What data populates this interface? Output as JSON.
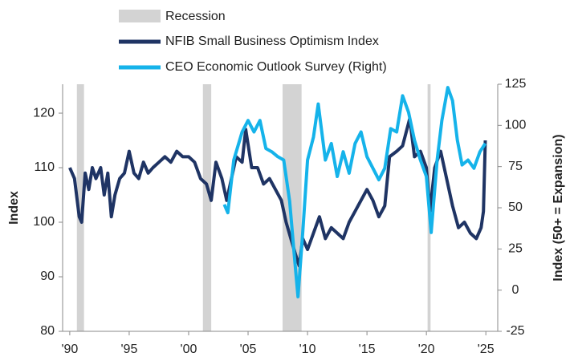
{
  "chart_data": {
    "type": "line",
    "recession_label": "Recession",
    "recession_color": "#d3d3d3",
    "recessions": [
      [
        1990.6,
        1991.2
      ],
      [
        2001.2,
        2001.9
      ],
      [
        2007.9,
        2009.5
      ],
      [
        2020.1,
        2020.35
      ]
    ],
    "ylabel": "Index",
    "y2label": "Index (50+ = Expansion)",
    "xlim": [
      1989.4,
      2026
    ],
    "xticks": [
      {
        "value": 1990,
        "label": "'90"
      },
      {
        "value": 1995,
        "label": "'95"
      },
      {
        "value": 2000,
        "label": "'00"
      },
      {
        "value": 2005,
        "label": "'05"
      },
      {
        "value": 2010,
        "label": "'10"
      },
      {
        "value": 2015,
        "label": "'15"
      },
      {
        "value": 2020,
        "label": "'20"
      },
      {
        "value": 2025,
        "label": "'25"
      }
    ],
    "ylim": [
      80,
      125.3
    ],
    "yticks": [
      80,
      90,
      100,
      110,
      120
    ],
    "y2lim": [
      -25,
      125
    ],
    "y2ticks": [
      -25,
      0,
      25,
      50,
      75,
      100,
      125
    ],
    "series": [
      {
        "name": "NFIB Small Business Optimism Index",
        "color": "#1f3464",
        "x": [
          1990.0,
          1990.4,
          1990.8,
          1991.0,
          1991.3,
          1991.6,
          1991.9,
          1992.2,
          1992.6,
          1992.9,
          1993.2,
          1993.5,
          1993.8,
          1994.2,
          1994.6,
          1995.0,
          1995.4,
          1995.8,
          1996.2,
          1996.6,
          1997.0,
          1997.5,
          1998.0,
          1998.5,
          1999.0,
          1999.5,
          2000.0,
          2000.5,
          2001.0,
          2001.5,
          2001.9,
          2002.3,
          2002.8,
          2003.2,
          2003.6,
          2004.0,
          2004.5,
          2004.8,
          2005.3,
          2005.8,
          2006.3,
          2006.8,
          2007.3,
          2007.8,
          2008.2,
          2008.6,
          2009.0,
          2009.3,
          2009.6,
          2010.0,
          2010.5,
          2011.0,
          2011.5,
          2012.0,
          2012.5,
          2013.0,
          2013.5,
          2014.0,
          2014.5,
          2015.0,
          2015.5,
          2016.0,
          2016.5,
          2016.9,
          2017.5,
          2018.0,
          2018.6,
          2019.0,
          2019.5,
          2020.0,
          2020.3,
          2020.7,
          2021.2,
          2021.7,
          2022.2,
          2022.7,
          2023.2,
          2023.7,
          2024.2,
          2024.6,
          2024.8,
          2024.95
        ],
        "values": [
          110,
          108,
          101,
          100,
          109,
          106,
          110,
          108,
          110,
          105,
          109,
          101,
          105,
          108,
          109,
          113,
          109,
          108,
          111,
          109,
          110,
          111,
          112,
          111,
          113,
          112,
          112,
          111,
          108,
          107,
          104,
          111,
          108,
          104,
          108,
          112,
          111,
          117,
          110,
          110,
          107,
          108,
          106,
          104,
          100,
          97,
          94,
          92,
          97,
          95,
          98,
          101,
          97,
          99,
          98,
          97,
          100,
          102,
          104,
          106,
          104,
          101,
          103,
          112,
          113,
          114,
          119,
          112,
          113,
          110,
          102,
          110,
          113,
          108,
          103,
          99,
          100,
          98,
          97,
          99,
          102,
          115
        ]
      },
      {
        "name": "CEO Economic Outlook Survey (Right)",
        "color": "#15b3ea",
        "axis": "y2",
        "x": [
          2003.0,
          2003.3,
          2003.8,
          2004.5,
          2005.0,
          2005.5,
          2006.0,
          2006.5,
          2007.0,
          2007.5,
          2008.0,
          2008.5,
          2008.9,
          2009.2,
          2009.6,
          2010.0,
          2010.5,
          2010.9,
          2011.5,
          2012.0,
          2012.5,
          2013.0,
          2013.5,
          2014.0,
          2014.5,
          2015.0,
          2015.5,
          2016.0,
          2016.5,
          2017.0,
          2017.5,
          2018.0,
          2018.5,
          2019.0,
          2019.5,
          2020.0,
          2020.4,
          2020.9,
          2021.3,
          2021.8,
          2022.2,
          2022.6,
          2023.0,
          2023.5,
          2024.0,
          2024.5,
          2024.95
        ],
        "values": [
          52,
          47,
          79,
          96,
          103,
          96,
          103,
          86,
          84,
          81,
          79,
          54,
          20,
          -4,
          35,
          79,
          93,
          113,
          79,
          89,
          69,
          84,
          71,
          89,
          96,
          81,
          74,
          67,
          74,
          98,
          96,
          118,
          108,
          91,
          79,
          69,
          35,
          79,
          103,
          123,
          115,
          91,
          76,
          79,
          74,
          84,
          89
        ]
      }
    ]
  }
}
